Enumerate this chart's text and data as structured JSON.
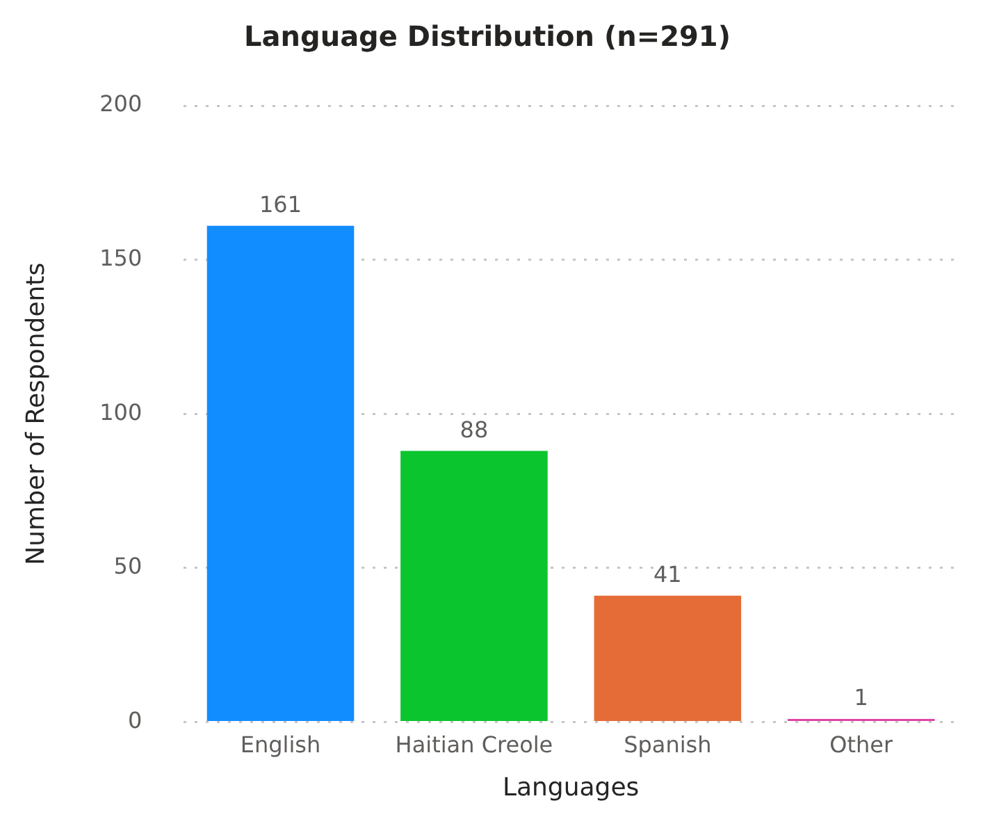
{
  "chart_data": {
    "type": "bar",
    "title": "Language Distribution (n=291)",
    "xlabel": "Languages",
    "ylabel": "Number of Respondents",
    "categories": [
      "English",
      "Haitian Creole",
      "Spanish",
      "Other"
    ],
    "values": [
      161,
      88,
      41,
      1
    ],
    "colors": [
      "#118dff",
      "#0bc52f",
      "#e66c37",
      "#e044a7"
    ],
    "ylim": [
      0,
      200
    ],
    "yticks": [
      0,
      50,
      100,
      150,
      200
    ],
    "grid": "y",
    "data_labels": true,
    "legend": false
  }
}
